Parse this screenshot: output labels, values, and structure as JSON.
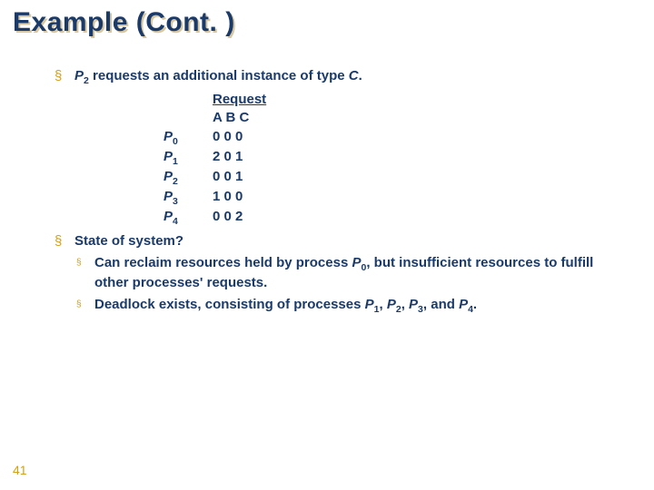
{
  "title": "Example (Cont. )",
  "slide_number": "41",
  "colors": {
    "title_color": "#1a3a6a",
    "title_shadow": "#d9c7a0",
    "text_color": "#1a3a6a",
    "bullet_color": "#d4a017",
    "slidenum_color": "#d4a017",
    "background": "#ffffff"
  },
  "typography": {
    "title_fontsize": 30,
    "body_fontsize": 15,
    "font_family": "Arial"
  },
  "bullets": [
    "P2 requests an additional instance of type C.",
    "State of system?"
  ],
  "sub_bullets": [
    "Can reclaim resources held by process P0, but insufficient resources to fulfill other processes' requests.",
    "Deadlock exists, consisting of processes P1, P2, P3, and P4."
  ],
  "request_table": {
    "title": "Request",
    "columns": "A B C",
    "rows": [
      {
        "proc": "P0",
        "vals": "0 0 0"
      },
      {
        "proc": "P1",
        "vals": "2 0 1"
      },
      {
        "proc": "P2",
        "vals": "0 0 1"
      },
      {
        "proc": "P3",
        "vals": "1 0 0"
      },
      {
        "proc": "P4",
        "vals": "0 0 2"
      }
    ]
  }
}
